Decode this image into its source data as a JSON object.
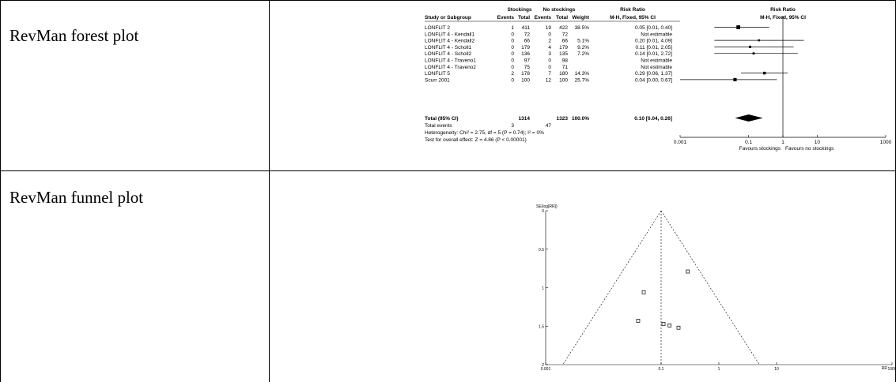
{
  "table": {
    "rows": [
      {
        "label": "RevMan forest plot"
      },
      {
        "label": "RevMan funnel plot"
      }
    ]
  },
  "forest": {
    "headers": {
      "group1": "Stockings",
      "group2": "No stockings",
      "study": "Study or Subgroup",
      "events1": "Events",
      "total1": "Total",
      "events2": "Events",
      "total2": "Total",
      "weight": "Weight",
      "rr_title": "Risk Ratio",
      "rr_method": "M-H, Fixed, 95% CI",
      "plot_title": "Risk Ratio",
      "plot_method": "M-H, Fixed, 95% CI"
    },
    "studies": [
      {
        "name": "LONFLIT 2",
        "e1": "1",
        "t1": "411",
        "e2": "19",
        "t2": "422",
        "weight": "38.5%",
        "ci_text": "0.05 [0.01, 0.40]"
      },
      {
        "name": "LONFLIT 4 - Kendall1",
        "e1": "0",
        "t1": "72",
        "e2": "0",
        "t2": "72",
        "weight": "",
        "ci_text": "Not estimable"
      },
      {
        "name": "LONFLIT 4 - Kendall2",
        "e1": "0",
        "t1": "66",
        "e2": "2",
        "t2": "66",
        "weight": "5.1%",
        "ci_text": "0.20 [0.01, 4.09]"
      },
      {
        "name": "LONFLIT 4 - Scholl1",
        "e1": "0",
        "t1": "179",
        "e2": "4",
        "t2": "179",
        "weight": "9.2%",
        "ci_text": "0.11 [0.01, 2.05]"
      },
      {
        "name": "LONFLIT 4 - Scholl2",
        "e1": "0",
        "t1": "136",
        "e2": "3",
        "t2": "135",
        "weight": "7.2%",
        "ci_text": "0.14 [0.01, 2.72]"
      },
      {
        "name": "LONFLIT 4 - Traveno1",
        "e1": "0",
        "t1": "97",
        "e2": "0",
        "t2": "98",
        "weight": "",
        "ci_text": "Not estimable"
      },
      {
        "name": "LONFLIT 4 - Traveno2",
        "e1": "0",
        "t1": "75",
        "e2": "0",
        "t2": "71",
        "weight": "",
        "ci_text": "Not estimable"
      },
      {
        "name": "LONFLIT 5",
        "e1": "2",
        "t1": "178",
        "e2": "7",
        "t2": "180",
        "weight": "14.3%",
        "ci_text": "0.29 [0.06, 1.37]"
      },
      {
        "name": "Scurr 2001",
        "e1": "0",
        "t1": "100",
        "e2": "12",
        "t2": "100",
        "weight": "25.7%",
        "ci_text": "0.04 [0.00, 0.67]"
      }
    ],
    "total": {
      "name": "Total (95% CI)",
      "t1": "1314",
      "t2": "1323",
      "weight": "100.0%",
      "ci_text": "0.10 [0.04, 0.26]"
    },
    "total_events": {
      "label": "Total events",
      "e1": "3",
      "e2": "47"
    },
    "heterogeneity": "Heterogeneity: Chi² = 2.75, df = 5 (P = 0.74); I² = 0%",
    "overall_effect": "Test for overall effect: Z = 4.86 (P < 0.00001)",
    "axis": {
      "ticks": [
        "0.001",
        "0.1",
        "1",
        "10",
        "1000"
      ],
      "left_label": "Favours stockings",
      "right_label": "Favours no stockings"
    }
  },
  "funnel": {
    "y_axis_label": "SE(log[RR])",
    "x_axis_label": "RR",
    "y_ticks": [
      "0",
      "0.5",
      "1",
      "1.5",
      "2"
    ],
    "x_ticks": [
      "0.001",
      "0.1",
      "1",
      "10",
      "1000"
    ]
  },
  "chart_data": [
    {
      "type": "forest",
      "title": "Risk Ratio",
      "subtitle": "M-H, Fixed, 95% CI",
      "x_scale": "log",
      "xlim": [
        0.001,
        1000
      ],
      "x_ticks": [
        0.001,
        0.1,
        1,
        10,
        1000
      ],
      "null_line": 1,
      "studies": [
        {
          "name": "LONFLIT 2",
          "rr": 0.05,
          "lo": 0.01,
          "hi": 0.4,
          "weight": 38.5
        },
        {
          "name": "LONFLIT 4 - Kendall1",
          "rr": null,
          "lo": null,
          "hi": null,
          "weight": null
        },
        {
          "name": "LONFLIT 4 - Kendall2",
          "rr": 0.2,
          "lo": 0.01,
          "hi": 4.09,
          "weight": 5.1
        },
        {
          "name": "LONFLIT 4 - Scholl1",
          "rr": 0.11,
          "lo": 0.01,
          "hi": 2.05,
          "weight": 9.2
        },
        {
          "name": "LONFLIT 4 - Scholl2",
          "rr": 0.14,
          "lo": 0.01,
          "hi": 2.72,
          "weight": 7.2
        },
        {
          "name": "LONFLIT 4 - Traveno1",
          "rr": null,
          "lo": null,
          "hi": null,
          "weight": null
        },
        {
          "name": "LONFLIT 4 - Traveno2",
          "rr": null,
          "lo": null,
          "hi": null,
          "weight": null
        },
        {
          "name": "LONFLIT 5",
          "rr": 0.29,
          "lo": 0.06,
          "hi": 1.37,
          "weight": 14.3
        },
        {
          "name": "Scurr 2001",
          "rr": 0.04,
          "lo": 0.0,
          "hi": 0.67,
          "weight": 25.7
        }
      ],
      "pooled": {
        "rr": 0.1,
        "lo": 0.04,
        "hi": 0.26
      }
    },
    {
      "type": "scatter",
      "title": "",
      "xlabel": "RR",
      "ylabel": "SE(log[RR])",
      "x_scale": "log",
      "xlim": [
        0.001,
        1000
      ],
      "ylim": [
        0,
        2
      ],
      "y_reversed": true,
      "pooled_rr": 0.1,
      "points": [
        {
          "x": 0.29,
          "y": 0.79
        },
        {
          "x": 0.05,
          "y": 1.06
        },
        {
          "x": 0.04,
          "y": 1.43
        },
        {
          "x": 0.11,
          "y": 1.47
        },
        {
          "x": 0.14,
          "y": 1.49
        },
        {
          "x": 0.2,
          "y": 1.52
        }
      ]
    }
  ]
}
